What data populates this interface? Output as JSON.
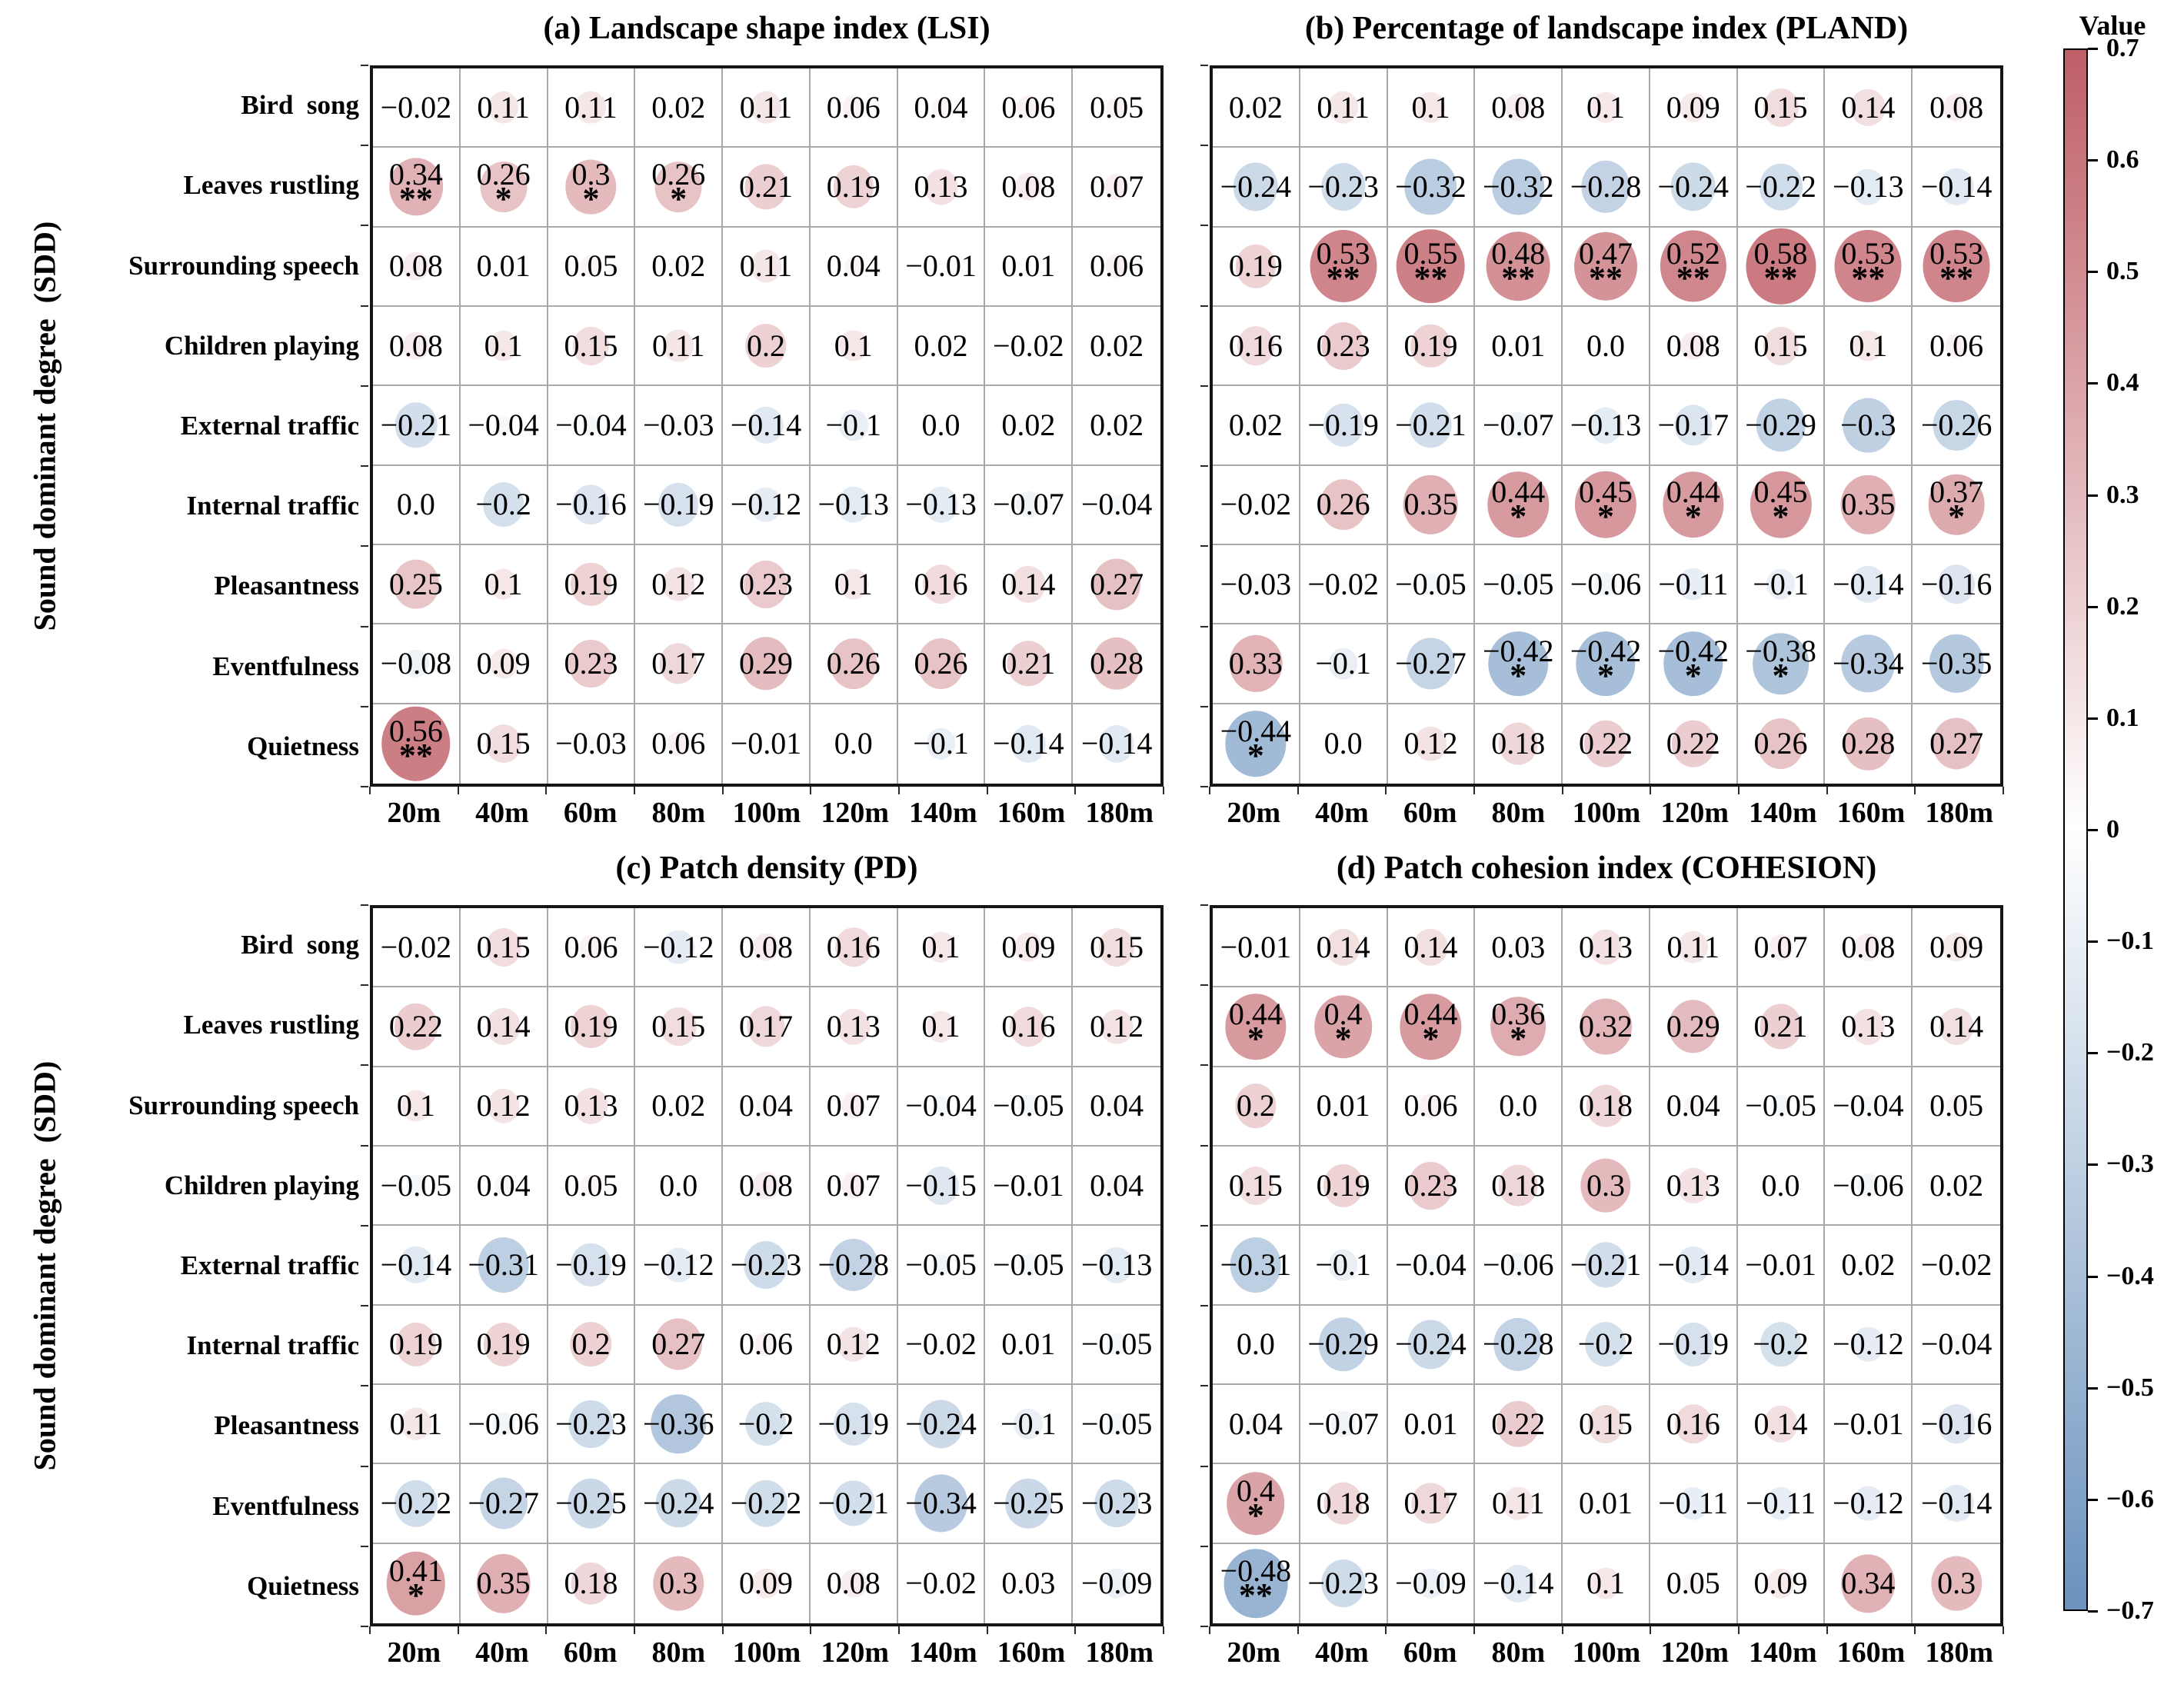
{
  "figure": {
    "y_axis_label": "Sound dominant degree  (SDD)",
    "colorbar": {
      "title": "Value",
      "max": 0.7,
      "min": -0.7,
      "top_color": "#bf5e66",
      "mid_color": "#ffffff",
      "bottom_color": "#6a92bd",
      "ticks": [
        "0.7",
        "0.6",
        "0.5",
        "0.4",
        "0.3",
        "0.2",
        "0.1",
        "0",
        "-0.1",
        "-0.2",
        "-0.3",
        "-0.4",
        "-0.5",
        "-0.6",
        "-0.7"
      ]
    },
    "significance_markers": {
      "single_star": "p<0.05",
      "double_star": "p<0.01"
    }
  },
  "chart_data": [
    {
      "type": "heatmap",
      "subtype": "bubble-correlation-matrix",
      "title": "(a) Landscape shape index (LSI)",
      "show_row_labels": true,
      "x_categories": [
        "20m",
        "40m",
        "60m",
        "80m",
        "100m",
        "120m",
        "140m",
        "160m",
        "180m"
      ],
      "y_categories": [
        "Bird  song",
        "Leaves rustling",
        "Surrounding speech",
        "Children playing",
        "External traffic",
        "Internal traffic",
        "Pleasantness",
        "Eventfulness",
        "Quietness"
      ],
      "values": [
        [
          "-0.02",
          "0.11",
          "0.11",
          "0.02",
          "0.11",
          "0.06",
          "0.04",
          "0.06",
          "0.05"
        ],
        [
          "0.34**",
          "0.26*",
          "0.3*",
          "0.26*",
          "0.21",
          "0.19",
          "0.13",
          "0.08",
          "0.07"
        ],
        [
          "0.08",
          "0.01",
          "0.05",
          "0.02",
          "0.11",
          "0.04",
          "-0.01",
          "0.01",
          "0.06"
        ],
        [
          "0.08",
          "0.1",
          "0.15",
          "0.11",
          "0.2",
          "0.1",
          "0.02",
          "-0.02",
          "0.02"
        ],
        [
          "-0.21",
          "-0.04",
          "-0.04",
          "-0.03",
          "-0.14",
          "-0.1",
          "0.0",
          "0.02",
          "0.02"
        ],
        [
          "0.0",
          "-0.2",
          "-0.16",
          "-0.19",
          "-0.12",
          "-0.13",
          "-0.13",
          "-0.07",
          "-0.04"
        ],
        [
          "0.25",
          "0.1",
          "0.19",
          "0.12",
          "0.23",
          "0.1",
          "0.16",
          "0.14",
          "0.27"
        ],
        [
          "-0.08",
          "0.09",
          "0.23",
          "0.17",
          "0.29",
          "0.26",
          "0.26",
          "0.21",
          "0.28"
        ],
        [
          "0.56**",
          "0.15",
          "-0.03",
          "0.06",
          "-0.01",
          "0.0",
          "-0.1",
          "-0.14",
          "-0.14"
        ]
      ]
    },
    {
      "type": "heatmap",
      "subtype": "bubble-correlation-matrix",
      "title": "(b) Percentage of landscape index (PLAND)",
      "show_row_labels": false,
      "x_categories": [
        "20m",
        "40m",
        "60m",
        "80m",
        "100m",
        "120m",
        "140m",
        "160m",
        "180m"
      ],
      "y_categories": [
        "Bird  song",
        "Leaves rustling",
        "Surrounding speech",
        "Children playing",
        "External traffic",
        "Internal traffic",
        "Pleasantness",
        "Eventfulness",
        "Quietness"
      ],
      "values": [
        [
          "0.02",
          "0.11",
          "0.1",
          "0.08",
          "0.1",
          "0.09",
          "0.15",
          "0.14",
          "0.08"
        ],
        [
          "-0.24",
          "-0.23",
          "-0.32",
          "-0.32",
          "-0.28",
          "-0.24",
          "-0.22",
          "-0.13",
          "-0.14"
        ],
        [
          "0.19",
          "0.53**",
          "0.55**",
          "0.48**",
          "0.47**",
          "0.52**",
          "0.58**",
          "0.53**",
          "0.53**"
        ],
        [
          "0.16",
          "0.23",
          "0.19",
          "0.01",
          "0.0",
          "0.08",
          "0.15",
          "0.1",
          "0.06"
        ],
        [
          "0.02",
          "-0.19",
          "-0.21",
          "-0.07",
          "-0.13",
          "-0.17",
          "-0.29",
          "-0.3",
          "-0.26"
        ],
        [
          "-0.02",
          "0.26",
          "0.35",
          "0.44*",
          "0.45*",
          "0.44*",
          "0.45*",
          "0.35",
          "0.37*"
        ],
        [
          "-0.03",
          "-0.02",
          "-0.05",
          "-0.05",
          "-0.06",
          "-0.11",
          "-0.1",
          "-0.14",
          "-0.16"
        ],
        [
          "0.33",
          "-0.1",
          "-0.27",
          "-0.42*",
          "-0.42*",
          "-0.42*",
          "-0.38*",
          "-0.34",
          "-0.35"
        ],
        [
          "-0.44*",
          "0.0",
          "0.12",
          "0.18",
          "0.22",
          "0.22",
          "0.26",
          "0.28",
          "0.27"
        ]
      ]
    },
    {
      "type": "heatmap",
      "subtype": "bubble-correlation-matrix",
      "title": "(c) Patch density (PD)",
      "show_row_labels": true,
      "x_categories": [
        "20m",
        "40m",
        "60m",
        "80m",
        "100m",
        "120m",
        "140m",
        "160m",
        "180m"
      ],
      "y_categories": [
        "Bird  song",
        "Leaves rustling",
        "Surrounding speech",
        "Children playing",
        "External traffic",
        "Internal traffic",
        "Pleasantness",
        "Eventfulness",
        "Quietness"
      ],
      "values": [
        [
          "-0.02",
          "0.15",
          "0.06",
          "-0.12",
          "0.08",
          "0.16",
          "0.1",
          "0.09",
          "0.15"
        ],
        [
          "0.22",
          "0.14",
          "0.19",
          "0.15",
          "0.17",
          "0.13",
          "0.1",
          "0.16",
          "0.12"
        ],
        [
          "0.1",
          "0.12",
          "0.13",
          "0.02",
          "0.04",
          "0.07",
          "-0.04",
          "-0.05",
          "0.04"
        ],
        [
          "-0.05",
          "0.04",
          "0.05",
          "0.0",
          "0.08",
          "0.07",
          "-0.15",
          "-0.01",
          "0.04"
        ],
        [
          "-0.14",
          "-0.31",
          "-0.19",
          "-0.12",
          "-0.23",
          "-0.28",
          "-0.05",
          "-0.05",
          "-0.13"
        ],
        [
          "0.19",
          "0.19",
          "0.2",
          "0.27",
          "0.06",
          "0.12",
          "-0.02",
          "0.01",
          "-0.05"
        ],
        [
          "0.11",
          "-0.06",
          "-0.23",
          "-0.36",
          "-0.2",
          "-0.19",
          "-0.24",
          "-0.1",
          "-0.05"
        ],
        [
          "-0.22",
          "-0.27",
          "-0.25",
          "-0.24",
          "-0.22",
          "-0.21",
          "-0.34",
          "-0.25",
          "-0.23"
        ],
        [
          "0.41*",
          "0.35",
          "0.18",
          "0.3",
          "0.09",
          "0.08",
          "-0.02",
          "0.03",
          "-0.09"
        ]
      ]
    },
    {
      "type": "heatmap",
      "subtype": "bubble-correlation-matrix",
      "title": "(d) Patch cohesion index (COHESION)",
      "show_row_labels": false,
      "x_categories": [
        "20m",
        "40m",
        "60m",
        "80m",
        "100m",
        "120m",
        "140m",
        "160m",
        "180m"
      ],
      "y_categories": [
        "Bird  song",
        "Leaves rustling",
        "Surrounding speech",
        "Children playing",
        "External traffic",
        "Internal traffic",
        "Pleasantness",
        "Eventfulness",
        "Quietness"
      ],
      "values": [
        [
          "-0.01",
          "0.14",
          "0.14",
          "0.03",
          "0.13",
          "0.11",
          "0.07",
          "0.08",
          "0.09"
        ],
        [
          "0.44*",
          "0.4*",
          "0.44*",
          "0.36*",
          "0.32",
          "0.29",
          "0.21",
          "0.13",
          "0.14"
        ],
        [
          "0.2",
          "0.01",
          "0.06",
          "0.0",
          "0.18",
          "0.04",
          "-0.05",
          "-0.04",
          "0.05"
        ],
        [
          "0.15",
          "0.19",
          "0.23",
          "0.18",
          "0.3",
          "0.13",
          "0.0",
          "-0.06",
          "0.02"
        ],
        [
          "-0.31",
          "-0.1",
          "-0.04",
          "-0.06",
          "-0.21",
          "-0.14",
          "-0.01",
          "0.02",
          "-0.02"
        ],
        [
          "0.0",
          "-0.29",
          "-0.24",
          "-0.28",
          "-0.2",
          "-0.19",
          "-0.2",
          "-0.12",
          "-0.04"
        ],
        [
          "0.04",
          "-0.07",
          "0.01",
          "0.22",
          "0.15",
          "0.16",
          "0.14",
          "-0.01",
          "-0.16"
        ],
        [
          "0.4*",
          "0.18",
          "0.17",
          "0.11",
          "0.01",
          "-0.11",
          "-0.11",
          "-0.12",
          "-0.14"
        ],
        [
          "-0.48**",
          "-0.23",
          "-0.09",
          "-0.14",
          "0.1",
          "0.05",
          "0.09",
          "0.34",
          "0.3"
        ]
      ]
    }
  ]
}
